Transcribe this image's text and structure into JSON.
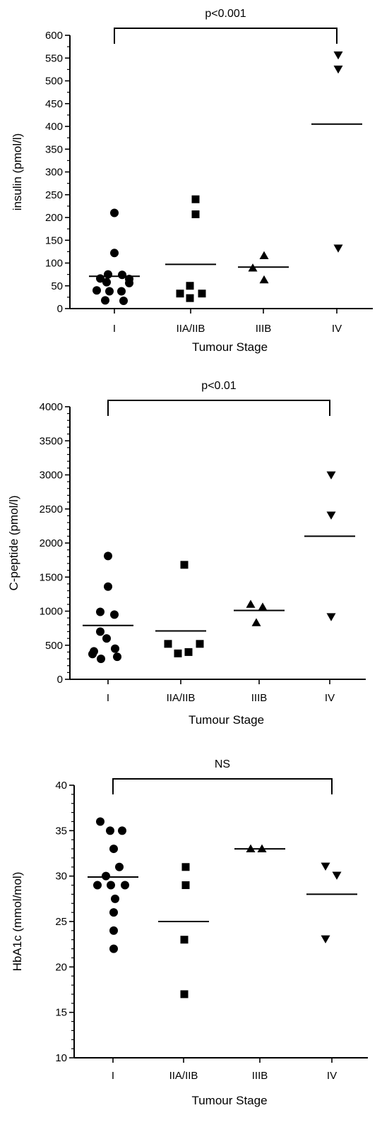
{
  "chart_data": [
    {
      "type": "scatter",
      "xlabel": "Tumour Stage",
      "ylabel": "insulin (pmol/l)",
      "categories": [
        "I",
        "IIA/IIB",
        "IIIB",
        "IV"
      ],
      "ylim": [
        0,
        600
      ],
      "yticks": [
        0,
        50,
        100,
        150,
        200,
        250,
        300,
        350,
        400,
        450,
        500,
        550,
        600
      ],
      "minor_per_major": 1,
      "annotation": "p<0.001",
      "series": [
        {
          "category": "I",
          "marker": "circle",
          "median": 71,
          "points": [
            {
              "dx": 0,
              "y": 210
            },
            {
              "dx": 0,
              "y": 122
            },
            {
              "dx": -9,
              "y": 75
            },
            {
              "dx": 11,
              "y": 74
            },
            {
              "dx": -20,
              "y": 66
            },
            {
              "dx": 21,
              "y": 65
            },
            {
              "dx": -11,
              "y": 58
            },
            {
              "dx": 21,
              "y": 56
            },
            {
              "dx": -25,
              "y": 40
            },
            {
              "dx": -7,
              "y": 38
            },
            {
              "dx": 10,
              "y": 38
            },
            {
              "dx": -13,
              "y": 18
            },
            {
              "dx": 13,
              "y": 17
            }
          ]
        },
        {
          "category": "IIA/IIB",
          "marker": "square",
          "median": 97,
          "points": [
            {
              "dx": 7,
              "y": 240
            },
            {
              "dx": 7,
              "y": 207
            },
            {
              "dx": -1,
              "y": 50
            },
            {
              "dx": -15,
              "y": 33
            },
            {
              "dx": 16,
              "y": 33
            },
            {
              "dx": -1,
              "y": 23
            }
          ]
        },
        {
          "category": "IIIB",
          "marker": "triangle-up",
          "median": 91,
          "points": [
            {
              "dx": 1,
              "y": 116
            },
            {
              "dx": -15,
              "y": 89
            },
            {
              "dx": 1,
              "y": 63
            }
          ]
        },
        {
          "category": "IV",
          "marker": "triangle-down",
          "median": 405,
          "points": [
            {
              "dx": 2,
              "y": 557
            },
            {
              "dx": 2,
              "y": 526
            },
            {
              "dx": 2,
              "y": 133
            }
          ]
        }
      ]
    },
    {
      "type": "scatter",
      "xlabel": "Tumour Stage",
      "ylabel": "C-peptide (pmol/l)",
      "categories": [
        "I",
        "IIA/IIB",
        "IIIB",
        "IV"
      ],
      "ylim": [
        0,
        4000
      ],
      "yticks": [
        0,
        500,
        1000,
        1500,
        2000,
        2500,
        3000,
        3500,
        4000
      ],
      "minor_per_major": 4,
      "annotation": "p<0.01",
      "series": [
        {
          "category": "I",
          "marker": "circle",
          "median": 790,
          "points": [
            {
              "dx": 0,
              "y": 1810
            },
            {
              "dx": 0,
              "y": 1360
            },
            {
              "dx": -11,
              "y": 990
            },
            {
              "dx": 9,
              "y": 950
            },
            {
              "dx": -11,
              "y": 700
            },
            {
              "dx": -2,
              "y": 600
            },
            {
              "dx": -20,
              "y": 410
            },
            {
              "dx": 10,
              "y": 450
            },
            {
              "dx": -10,
              "y": 300
            },
            {
              "dx": 13,
              "y": 330
            },
            {
              "dx": -22,
              "y": 370
            }
          ]
        },
        {
          "category": "IIA/IIB",
          "marker": "square",
          "median": 710,
          "points": [
            {
              "dx": 5,
              "y": 1680
            },
            {
              "dx": -18,
              "y": 520
            },
            {
              "dx": 27,
              "y": 520
            },
            {
              "dx": -4,
              "y": 380
            },
            {
              "dx": 11,
              "y": 400
            }
          ]
        },
        {
          "category": "IIIB",
          "marker": "triangle-up",
          "median": 1010,
          "points": [
            {
              "dx": -12,
              "y": 1100
            },
            {
              "dx": 5,
              "y": 1060
            },
            {
              "dx": -4,
              "y": 830
            }
          ]
        },
        {
          "category": "IV",
          "marker": "triangle-down",
          "median": 2100,
          "points": [
            {
              "dx": 2,
              "y": 3000
            },
            {
              "dx": 2,
              "y": 2410
            },
            {
              "dx": 2,
              "y": 920
            }
          ]
        }
      ]
    },
    {
      "type": "scatter",
      "xlabel": "Tumour Stage",
      "ylabel": "HbA1c (mmol/mol)",
      "categories": [
        "I",
        "IIA/IIB",
        "IIIB",
        "IV"
      ],
      "ylim": [
        10,
        40
      ],
      "yticks": [
        10,
        15,
        20,
        25,
        30,
        35,
        40
      ],
      "minor_per_major": 4,
      "annotation": "NS",
      "series": [
        {
          "category": "I",
          "marker": "circle",
          "median": 29.9,
          "points": [
            {
              "dx": -18,
              "y": 36
            },
            {
              "dx": -4,
              "y": 35
            },
            {
              "dx": 13,
              "y": 35
            },
            {
              "dx": 1,
              "y": 33
            },
            {
              "dx": 9,
              "y": 31
            },
            {
              "dx": -10,
              "y": 30
            },
            {
              "dx": -22,
              "y": 29
            },
            {
              "dx": -3,
              "y": 29
            },
            {
              "dx": 17,
              "y": 29
            },
            {
              "dx": 3,
              "y": 27.5
            },
            {
              "dx": 1,
              "y": 26
            },
            {
              "dx": 1,
              "y": 24
            },
            {
              "dx": 1,
              "y": 22
            }
          ]
        },
        {
          "category": "IIA/IIB",
          "marker": "square",
          "median": 25,
          "points": [
            {
              "dx": 3,
              "y": 31
            },
            {
              "dx": 3,
              "y": 29
            },
            {
              "dx": 1,
              "y": 23
            },
            {
              "dx": 1,
              "y": 17
            }
          ]
        },
        {
          "category": "IIIB",
          "marker": "triangle-up",
          "median": 33,
          "points": [
            {
              "dx": -13,
              "y": 33
            },
            {
              "dx": 3,
              "y": 33
            }
          ]
        },
        {
          "category": "IV",
          "marker": "triangle-down",
          "median": 28,
          "points": [
            {
              "dx": -9,
              "y": 31.1
            },
            {
              "dx": 7,
              "y": 30.1
            },
            {
              "dx": -9,
              "y": 23.1
            }
          ]
        }
      ]
    }
  ]
}
